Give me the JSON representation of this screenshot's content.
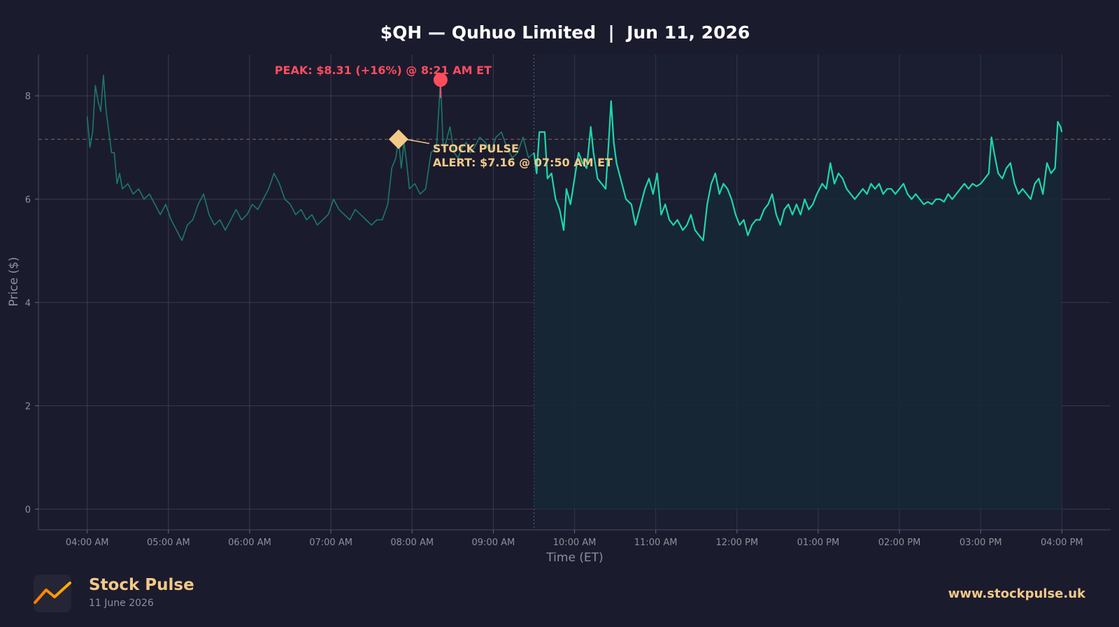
{
  "chart_data": {
    "type": "line",
    "title": "$QH — Quhuo Limited  |  Jun 11, 2026",
    "xlabel": "Time (ET)",
    "ylabel": "Price ($)",
    "ylim": [
      -0.4,
      8.8
    ],
    "yticks": [
      0,
      2,
      4,
      6,
      8
    ],
    "xticks": [
      {
        "t": "04:00",
        "label": "04:00 AM"
      },
      {
        "t": "05:00",
        "label": "05:00 AM"
      },
      {
        "t": "06:00",
        "label": "06:00 AM"
      },
      {
        "t": "07:00",
        "label": "07:00 AM"
      },
      {
        "t": "08:00",
        "label": "08:00 AM"
      },
      {
        "t": "09:00",
        "label": "09:00 AM"
      },
      {
        "t": "10:00",
        "label": "10:00 AM"
      },
      {
        "t": "11:00",
        "label": "11:00 AM"
      },
      {
        "t": "12:00",
        "label": "12:00 PM"
      },
      {
        "t": "13:00",
        "label": "01:00 PM"
      },
      {
        "t": "14:00",
        "label": "02:00 PM"
      },
      {
        "t": "15:00",
        "label": "03:00 PM"
      },
      {
        "t": "16:00",
        "label": "04:00 PM"
      }
    ],
    "xlim": [
      "03:24",
      "16:36"
    ],
    "grid": true,
    "market_open": "09:30",
    "alert_level": 7.16,
    "series": [
      {
        "segment": "premarket",
        "color": "#1a7a68",
        "points": [
          [
            "04:00",
            7.6
          ],
          [
            "04:02",
            7.0
          ],
          [
            "04:04",
            7.3
          ],
          [
            "04:06",
            8.2
          ],
          [
            "04:08",
            7.9
          ],
          [
            "04:10",
            7.7
          ],
          [
            "04:12",
            8.4
          ],
          [
            "04:14",
            7.7
          ],
          [
            "04:16",
            7.3
          ],
          [
            "04:18",
            6.9
          ],
          [
            "04:20",
            6.9
          ],
          [
            "04:22",
            6.3
          ],
          [
            "04:24",
            6.5
          ],
          [
            "04:26",
            6.2
          ],
          [
            "04:30",
            6.3
          ],
          [
            "04:34",
            6.1
          ],
          [
            "04:38",
            6.2
          ],
          [
            "04:42",
            6.0
          ],
          [
            "04:46",
            6.1
          ],
          [
            "04:50",
            5.9
          ],
          [
            "04:54",
            5.7
          ],
          [
            "04:58",
            5.9
          ],
          [
            "05:02",
            5.6
          ],
          [
            "05:06",
            5.4
          ],
          [
            "05:10",
            5.2
          ],
          [
            "05:14",
            5.5
          ],
          [
            "05:18",
            5.6
          ],
          [
            "05:22",
            5.9
          ],
          [
            "05:26",
            6.1
          ],
          [
            "05:30",
            5.7
          ],
          [
            "05:34",
            5.5
          ],
          [
            "05:38",
            5.6
          ],
          [
            "05:42",
            5.4
          ],
          [
            "05:46",
            5.6
          ],
          [
            "05:50",
            5.8
          ],
          [
            "05:54",
            5.6
          ],
          [
            "05:58",
            5.7
          ],
          [
            "06:02",
            5.9
          ],
          [
            "06:06",
            5.8
          ],
          [
            "06:10",
            6.0
          ],
          [
            "06:14",
            6.2
          ],
          [
            "06:18",
            6.5
          ],
          [
            "06:22",
            6.3
          ],
          [
            "06:26",
            6.0
          ],
          [
            "06:30",
            5.9
          ],
          [
            "06:34",
            5.7
          ],
          [
            "06:38",
            5.8
          ],
          [
            "06:42",
            5.6
          ],
          [
            "06:46",
            5.7
          ],
          [
            "06:50",
            5.5
          ],
          [
            "06:54",
            5.6
          ],
          [
            "06:58",
            5.7
          ],
          [
            "07:02",
            6.0
          ],
          [
            "07:06",
            5.8
          ],
          [
            "07:10",
            5.7
          ],
          [
            "07:14",
            5.6
          ],
          [
            "07:18",
            5.8
          ],
          [
            "07:22",
            5.7
          ],
          [
            "07:26",
            5.6
          ],
          [
            "07:30",
            5.5
          ],
          [
            "07:34",
            5.6
          ],
          [
            "07:38",
            5.6
          ],
          [
            "07:42",
            5.9
          ],
          [
            "07:45",
            6.6
          ],
          [
            "07:48",
            6.8
          ],
          [
            "07:50",
            7.16
          ],
          [
            "07:52",
            6.6
          ],
          [
            "07:54",
            7.1
          ],
          [
            "07:56",
            6.7
          ],
          [
            "07:58",
            6.2
          ],
          [
            "08:02",
            6.3
          ],
          [
            "08:06",
            6.1
          ],
          [
            "08:10",
            6.2
          ],
          [
            "08:14",
            6.9
          ],
          [
            "08:18",
            7.0
          ],
          [
            "08:21",
            8.31
          ],
          [
            "08:23",
            7.0
          ],
          [
            "08:25",
            7.1
          ],
          [
            "08:28",
            7.4
          ],
          [
            "08:31",
            6.9
          ],
          [
            "08:34",
            6.8
          ],
          [
            "08:37",
            7.0
          ],
          [
            "08:40",
            7.1
          ],
          [
            "08:43",
            6.9
          ],
          [
            "08:46",
            7.0
          ],
          [
            "08:50",
            7.2
          ],
          [
            "08:54",
            7.1
          ],
          [
            "08:58",
            6.9
          ],
          [
            "09:02",
            7.2
          ],
          [
            "09:06",
            7.3
          ],
          [
            "09:10",
            7.0
          ],
          [
            "09:14",
            6.8
          ],
          [
            "09:18",
            6.9
          ],
          [
            "09:22",
            7.2
          ],
          [
            "09:26",
            6.8
          ],
          [
            "09:30",
            6.9
          ]
        ]
      },
      {
        "segment": "regular",
        "color": "#1ed6ac",
        "points": [
          [
            "09:30",
            6.9
          ],
          [
            "09:32",
            6.5
          ],
          [
            "09:34",
            7.3
          ],
          [
            "09:38",
            7.3
          ],
          [
            "09:40",
            6.4
          ],
          [
            "09:43",
            6.5
          ],
          [
            "09:46",
            6.0
          ],
          [
            "09:49",
            5.8
          ],
          [
            "09:52",
            5.4
          ],
          [
            "09:54",
            6.2
          ],
          [
            "09:57",
            5.9
          ],
          [
            "10:00",
            6.4
          ],
          [
            "10:03",
            6.9
          ],
          [
            "10:06",
            6.7
          ],
          [
            "10:09",
            6.6
          ],
          [
            "10:12",
            7.4
          ],
          [
            "10:14",
            6.9
          ],
          [
            "10:17",
            6.4
          ],
          [
            "10:20",
            6.3
          ],
          [
            "10:23",
            6.2
          ],
          [
            "10:25",
            7.0
          ],
          [
            "10:27",
            7.9
          ],
          [
            "10:29",
            7.1
          ],
          [
            "10:31",
            6.7
          ],
          [
            "10:34",
            6.4
          ],
          [
            "10:38",
            6.0
          ],
          [
            "10:42",
            5.9
          ],
          [
            "10:45",
            5.5
          ],
          [
            "10:48",
            5.8
          ],
          [
            "10:52",
            6.2
          ],
          [
            "10:55",
            6.4
          ],
          [
            "10:58",
            6.1
          ],
          [
            "11:01",
            6.5
          ],
          [
            "11:04",
            5.7
          ],
          [
            "11:07",
            5.9
          ],
          [
            "11:10",
            5.6
          ],
          [
            "11:13",
            5.5
          ],
          [
            "11:16",
            5.6
          ],
          [
            "11:20",
            5.4
          ],
          [
            "11:23",
            5.5
          ],
          [
            "11:26",
            5.7
          ],
          [
            "11:29",
            5.4
          ],
          [
            "11:32",
            5.3
          ],
          [
            "11:35",
            5.2
          ],
          [
            "11:38",
            5.9
          ],
          [
            "11:41",
            6.3
          ],
          [
            "11:44",
            6.5
          ],
          [
            "11:47",
            6.1
          ],
          [
            "11:50",
            6.3
          ],
          [
            "11:53",
            6.2
          ],
          [
            "11:56",
            6.0
          ],
          [
            "11:59",
            5.7
          ],
          [
            "12:02",
            5.5
          ],
          [
            "12:05",
            5.6
          ],
          [
            "12:08",
            5.3
          ],
          [
            "12:11",
            5.5
          ],
          [
            "12:14",
            5.6
          ],
          [
            "12:17",
            5.6
          ],
          [
            "12:20",
            5.8
          ],
          [
            "12:23",
            5.9
          ],
          [
            "12:26",
            6.1
          ],
          [
            "12:29",
            5.7
          ],
          [
            "12:32",
            5.5
          ],
          [
            "12:35",
            5.8
          ],
          [
            "12:38",
            5.9
          ],
          [
            "12:41",
            5.7
          ],
          [
            "12:44",
            5.9
          ],
          [
            "12:47",
            5.7
          ],
          [
            "12:50",
            6.0
          ],
          [
            "12:53",
            5.8
          ],
          [
            "12:56",
            5.9
          ],
          [
            "12:59",
            6.1
          ],
          [
            "13:03",
            6.3
          ],
          [
            "13:06",
            6.2
          ],
          [
            "13:09",
            6.7
          ],
          [
            "13:12",
            6.3
          ],
          [
            "13:15",
            6.5
          ],
          [
            "13:18",
            6.4
          ],
          [
            "13:21",
            6.2
          ],
          [
            "13:24",
            6.1
          ],
          [
            "13:27",
            6.0
          ],
          [
            "13:30",
            6.1
          ],
          [
            "13:33",
            6.2
          ],
          [
            "13:36",
            6.1
          ],
          [
            "13:39",
            6.3
          ],
          [
            "13:42",
            6.2
          ],
          [
            "13:45",
            6.3
          ],
          [
            "13:48",
            6.1
          ],
          [
            "13:51",
            6.2
          ],
          [
            "13:54",
            6.2
          ],
          [
            "13:57",
            6.1
          ],
          [
            "14:00",
            6.2
          ],
          [
            "14:03",
            6.3
          ],
          [
            "14:06",
            6.1
          ],
          [
            "14:09",
            6.0
          ],
          [
            "14:12",
            6.1
          ],
          [
            "14:15",
            6.0
          ],
          [
            "14:18",
            5.9
          ],
          [
            "14:21",
            5.95
          ],
          [
            "14:24",
            5.9
          ],
          [
            "14:27",
            6.0
          ],
          [
            "14:30",
            6.0
          ],
          [
            "14:33",
            5.95
          ],
          [
            "14:36",
            6.1
          ],
          [
            "14:39",
            6.0
          ],
          [
            "14:42",
            6.1
          ],
          [
            "14:45",
            6.2
          ],
          [
            "14:48",
            6.3
          ],
          [
            "14:51",
            6.2
          ],
          [
            "14:54",
            6.3
          ],
          [
            "14:57",
            6.25
          ],
          [
            "15:00",
            6.3
          ],
          [
            "15:03",
            6.4
          ],
          [
            "15:06",
            6.5
          ],
          [
            "15:08",
            7.2
          ],
          [
            "15:10",
            6.9
          ],
          [
            "15:13",
            6.5
          ],
          [
            "15:16",
            6.4
          ],
          [
            "15:19",
            6.6
          ],
          [
            "15:22",
            6.7
          ],
          [
            "15:25",
            6.3
          ],
          [
            "15:28",
            6.1
          ],
          [
            "15:31",
            6.2
          ],
          [
            "15:34",
            6.1
          ],
          [
            "15:37",
            6.0
          ],
          [
            "15:40",
            6.3
          ],
          [
            "15:43",
            6.4
          ],
          [
            "15:46",
            6.1
          ],
          [
            "15:49",
            6.7
          ],
          [
            "15:52",
            6.5
          ],
          [
            "15:55",
            6.6
          ],
          [
            "15:57",
            7.5
          ],
          [
            "15:59",
            7.4
          ],
          [
            "16:00",
            7.3
          ]
        ]
      }
    ],
    "annotations": [
      {
        "type": "peak",
        "label": "PEAK: $8.31 (+16%) @ 8:21 AM ET",
        "t": "08:21",
        "value": 8.31,
        "color": "#ff4d5e"
      },
      {
        "type": "alert",
        "label_line1": "STOCK PULSE",
        "label_line2": "ALERT: $7.16 @ 07:50 AM ET",
        "t": "07:50",
        "value": 7.16,
        "color": "#f3c987"
      }
    ],
    "colors": {
      "background": "#1b1b2e",
      "grid": "#3a3a52",
      "axis_text": "#8e8e9c",
      "fill": "#172836",
      "alert_line": "#c8a070"
    }
  },
  "footer": {
    "brand": "Stock Pulse",
    "date": "11 June 2026",
    "url": "www.stockpulse.uk",
    "logo_icon": "trend-line-icon"
  }
}
